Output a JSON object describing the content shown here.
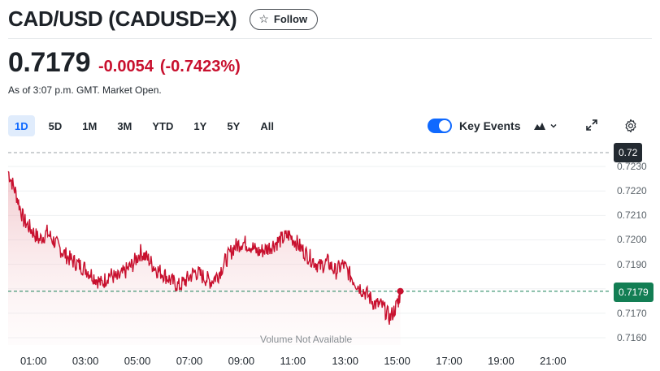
{
  "header": {
    "title": "CAD/USD (CADUSD=X)",
    "follow_label": "Follow"
  },
  "quote": {
    "price": "0.7179",
    "change": "-0.0054",
    "change_pct": "(-0.7423%)",
    "as_of": "As of 3:07 p.m. GMT. Market Open."
  },
  "ranges": [
    "1D",
    "5D",
    "1M",
    "3M",
    "YTD",
    "1Y",
    "5Y",
    "All"
  ],
  "active_range": "1D",
  "controls": {
    "key_events_label": "Key Events",
    "key_events_on": true
  },
  "colors": {
    "accent": "#0f69ff",
    "down": "#c8102e",
    "last_tag": "#137e54",
    "high_tag": "#232a31"
  },
  "icons": [
    "star-icon",
    "chart-type-mountain-icon",
    "chevron-down-icon",
    "expand-icon",
    "gear-icon"
  ],
  "chart_data": {
    "type": "area",
    "y_ticks": [
      "0.7230",
      "0.7220",
      "0.7210",
      "0.7200",
      "0.7190",
      "0.7180",
      "0.7170",
      "0.7160"
    ],
    "x_ticks": [
      "01:00",
      "03:00",
      "05:00",
      "07:00",
      "09:00",
      "11:00",
      "13:00",
      "15:00",
      "17:00",
      "19:00",
      "21:00"
    ],
    "ylim": [
      0.7157,
      0.7235
    ],
    "xlim_hours": [
      0,
      23
    ],
    "reference_level": "0.72",
    "last_value_label": "0.7179",
    "volume_note": "Volume Not Available",
    "series": [
      {
        "x": [
          0.0,
          0.3,
          0.6,
          0.9,
          1.2,
          1.5,
          1.8,
          2.1,
          2.4,
          2.7,
          3.0,
          3.3,
          3.6,
          3.9,
          4.2,
          4.5,
          4.8,
          5.1,
          5.4,
          5.7,
          6.0,
          6.3,
          6.6,
          6.9,
          7.2,
          7.5,
          7.8,
          8.1,
          8.4,
          8.7,
          9.0,
          9.3,
          9.6,
          9.9,
          10.2,
          10.5,
          10.8,
          11.1,
          11.4,
          11.7,
          12.0,
          12.3,
          12.6,
          12.9,
          13.2,
          13.5,
          13.8,
          14.1,
          14.4,
          14.7,
          15.0,
          15.1
        ],
        "values": [
          0.7228,
          0.7219,
          0.7208,
          0.7204,
          0.72,
          0.7203,
          0.7199,
          0.7195,
          0.7192,
          0.719,
          0.7188,
          0.7185,
          0.7182,
          0.7186,
          0.7184,
          0.7187,
          0.719,
          0.7195,
          0.7192,
          0.7188,
          0.7186,
          0.7183,
          0.7181,
          0.7184,
          0.7187,
          0.7185,
          0.7183,
          0.7186,
          0.7192,
          0.7197,
          0.7199,
          0.7198,
          0.7195,
          0.7196,
          0.7198,
          0.72,
          0.7202,
          0.7199,
          0.7195,
          0.7192,
          0.7189,
          0.7191,
          0.7187,
          0.719,
          0.7185,
          0.7181,
          0.7178,
          0.7174,
          0.7173,
          0.7168,
          0.7174,
          0.7179
        ]
      }
    ]
  }
}
